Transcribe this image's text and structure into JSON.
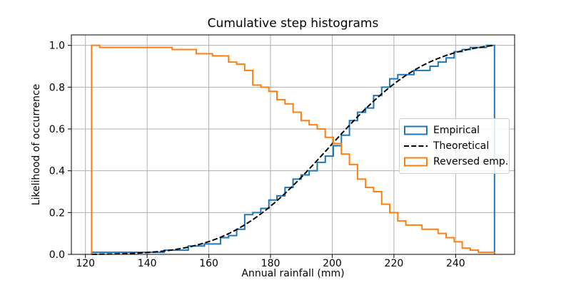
{
  "figure": {
    "title": "Cumulative step histograms",
    "xlabel": "Annual rainfall (mm)",
    "ylabel": "Likelihood of occurrence"
  },
  "legend": {
    "location": "right",
    "items": [
      {
        "label": "Empirical",
        "handle": "step-rect",
        "color": "#1f77b4"
      },
      {
        "label": "Theoretical",
        "handle": "dashed-line",
        "color": "#000000"
      },
      {
        "label": "Reversed emp.",
        "handle": "step-rect",
        "color": "#ff7f0e"
      }
    ]
  },
  "chart_data": {
    "type": "step_histogram_cumulative",
    "title": "Cumulative step histograms",
    "xlabel": "Annual rainfall (mm)",
    "ylabel": "Likelihood of occurrence",
    "xlim": [
      115.44,
      259.12
    ],
    "ylim": [
      0,
      1.05
    ],
    "xticks": [
      120,
      140,
      160,
      180,
      200,
      220,
      240
    ],
    "xtick_labels": [
      "120",
      "140",
      "160",
      "180",
      "200",
      "220",
      "240"
    ],
    "yticks": [
      0.0,
      0.2,
      0.4,
      0.6,
      0.8,
      1.0
    ],
    "ytick_labels": [
      "0.0",
      "0.2",
      "0.4",
      "0.6",
      "0.8",
      "1.0"
    ],
    "grid": true,
    "grid_color": "#b0b0b0",
    "spine_color": "#000000",
    "bins": {
      "start": 122.0,
      "width": 2.612,
      "n": 50
    },
    "total_samples": 100,
    "bin_counts": [
      1,
      0,
      0,
      0,
      0,
      0,
      0,
      0,
      0,
      1,
      0,
      0,
      2,
      0,
      1,
      0,
      3,
      1,
      3,
      7,
      1,
      2,
      4,
      2,
      4,
      4,
      2,
      2,
      4,
      3,
      5,
      5,
      7,
      4,
      2,
      6,
      4,
      4,
      2,
      0,
      2,
      0,
      2,
      2,
      2,
      3,
      1,
      1,
      0,
      1
    ],
    "series": [
      {
        "name": "Empirical",
        "kind": "cumulative_step",
        "direction": 1,
        "color": "#1f77b4",
        "linewidth": 2
      },
      {
        "name": "Theoretical",
        "kind": "normal_cdf",
        "mu": 200,
        "sigma": 25,
        "color": "#000000",
        "linewidth": 2,
        "linestyle": "dashed"
      },
      {
        "name": "Reversed emp.",
        "kind": "cumulative_step",
        "direction": -1,
        "color": "#ff7f0e",
        "linewidth": 2
      }
    ]
  }
}
